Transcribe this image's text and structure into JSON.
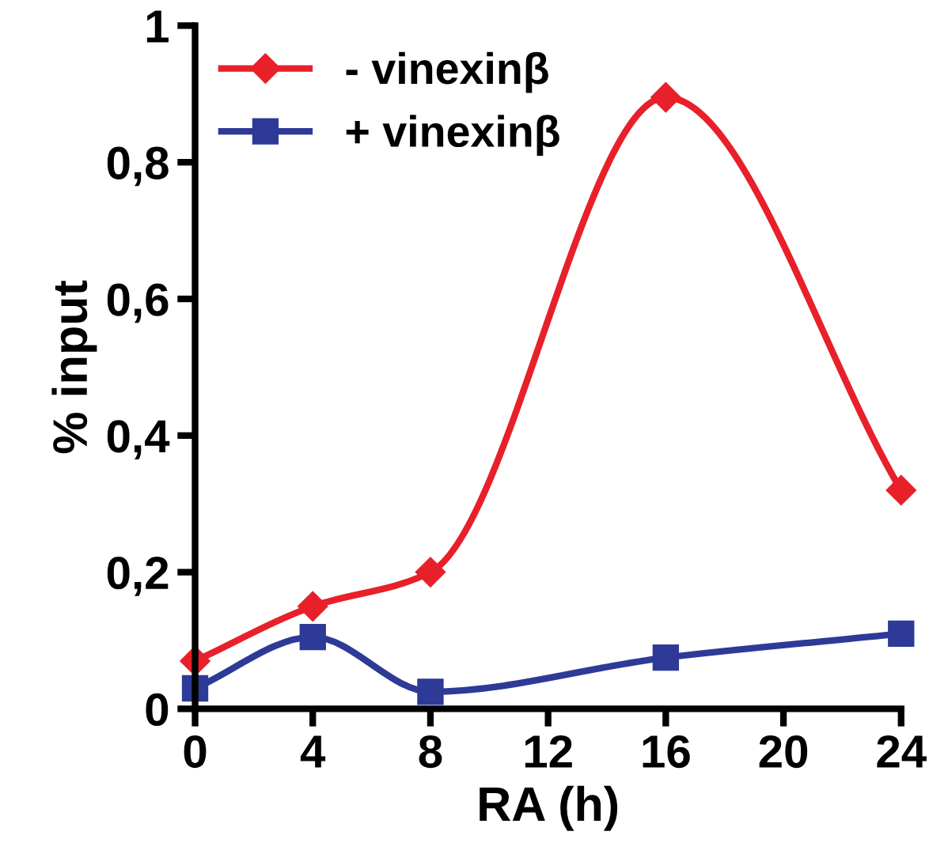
{
  "chart_data": {
    "type": "line",
    "xlabel": "RA (h)",
    "ylabel": "% input",
    "x": [
      0,
      4,
      8,
      16,
      24
    ],
    "series": [
      {
        "name": "- vinexinβ",
        "color": "#e8202a",
        "marker": "diamond",
        "values": [
          0.07,
          0.15,
          0.2,
          0.895,
          0.32
        ]
      },
      {
        "name": "+ vinexinβ",
        "color": "#2e3a97",
        "marker": "square",
        "values": [
          0.03,
          0.105,
          0.025,
          0.075,
          0.11
        ]
      }
    ],
    "xlim": [
      0,
      24
    ],
    "xticks": [
      0,
      4,
      8,
      12,
      16,
      20,
      24
    ],
    "ylim": [
      0,
      1
    ],
    "yticks": [
      0,
      {
        "value": 0.2,
        "label": "0,2"
      },
      {
        "value": 0.4,
        "label": "0,4"
      },
      {
        "value": 0.6,
        "label": "0,6"
      },
      {
        "value": 0.8,
        "label": "0,8"
      },
      1
    ],
    "grid": false,
    "legend": "top left",
    "line_style": "solid"
  }
}
